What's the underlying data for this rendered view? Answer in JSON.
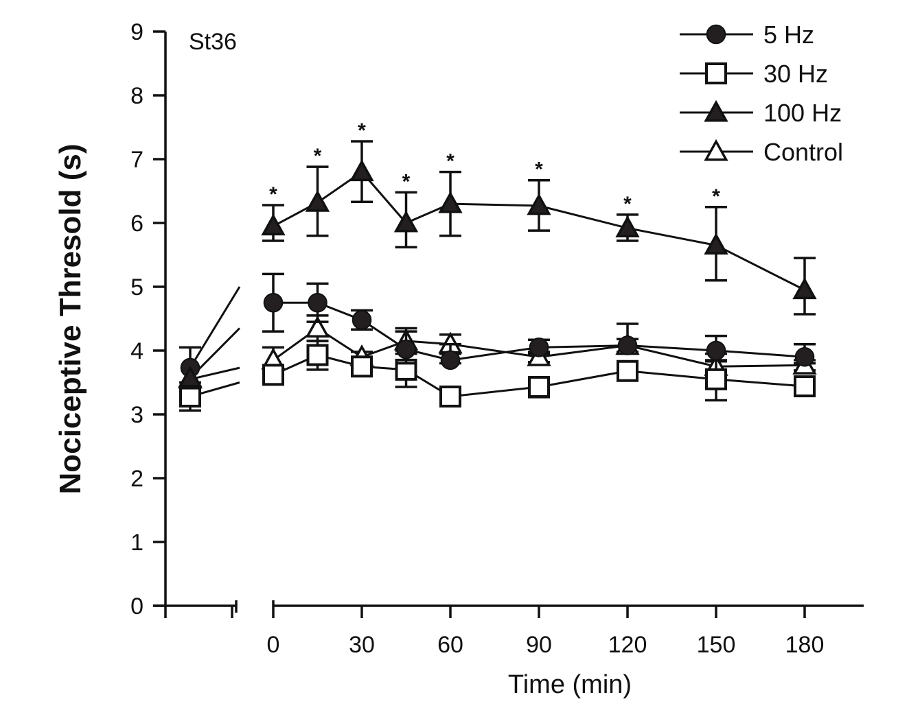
{
  "chart_data": {
    "type": "line",
    "title": "",
    "panel_label": "St36",
    "xlabel": "Time (min)",
    "ylabel": "Nociceptive Thresold (s)",
    "ylim": [
      0,
      9
    ],
    "xlim": [
      0,
      195
    ],
    "y_ticks": [
      "0",
      "1",
      "2",
      "3",
      "4",
      "5",
      "6",
      "7",
      "8",
      "9"
    ],
    "x_ticks": [
      "0",
      "30",
      "60",
      "90",
      "120",
      "150",
      "180"
    ],
    "x_tick_values": [
      0,
      30,
      60,
      90,
      120,
      150,
      180
    ],
    "baseline": {
      "label": "",
      "note": "pre-stimulation baseline shown on separate broken axis segment"
    },
    "x": [
      0,
      15,
      30,
      45,
      60,
      90,
      120,
      150,
      180
    ],
    "grid": false,
    "legend_position": "top-right",
    "series": [
      {
        "name": "5 Hz",
        "marker": "filled-circle",
        "baseline": 3.73,
        "baseline_err": 0.32,
        "values": [
          4.75,
          4.75,
          4.48,
          4.02,
          3.85,
          4.05,
          4.08,
          4.0,
          3.9
        ],
        "err_up": [
          0.45,
          0.3,
          0.15,
          0.28,
          0.25,
          0.12,
          0.34,
          0.23,
          0.2
        ],
        "err_down": [
          0.45,
          0.3,
          0.15,
          0.22,
          0.05,
          0.1,
          0.13,
          0.15,
          0.1
        ],
        "significant": [
          false,
          false,
          false,
          false,
          false,
          false,
          false,
          false,
          false
        ]
      },
      {
        "name": "30 Hz",
        "marker": "open-square",
        "baseline": 3.28,
        "baseline_err": 0.22,
        "values": [
          3.62,
          3.93,
          3.75,
          3.7,
          3.28,
          3.43,
          3.68,
          3.55,
          3.44
        ],
        "err_up": [
          0.1,
          0.22,
          0.1,
          0.3,
          0.08,
          0.12,
          0.1,
          0.4,
          0.1
        ],
        "err_down": [
          0.1,
          0.23,
          0.1,
          0.27,
          0.08,
          0.16,
          0.1,
          0.33,
          0.1
        ],
        "significant": [
          false,
          false,
          false,
          false,
          false,
          false,
          false,
          false,
          false
        ]
      },
      {
        "name": "100 Hz",
        "marker": "filled-triangle",
        "baseline": 3.57,
        "baseline_err": 0.0,
        "values": [
          5.95,
          6.32,
          6.8,
          6.0,
          6.3,
          6.27,
          5.92,
          5.65,
          4.95
        ],
        "err_up": [
          0.33,
          0.56,
          0.48,
          0.48,
          0.5,
          0.4,
          0.21,
          0.6,
          0.5
        ],
        "err_down": [
          0.23,
          0.52,
          0.47,
          0.38,
          0.5,
          0.39,
          0.2,
          0.55,
          0.38
        ],
        "significant": [
          true,
          true,
          true,
          true,
          true,
          true,
          true,
          true,
          false
        ]
      },
      {
        "name": "Control",
        "marker": "open-triangle",
        "baseline": 3.55,
        "baseline_err": 0.0,
        "values": [
          3.85,
          4.35,
          3.9,
          4.15,
          4.1,
          3.9,
          4.08,
          3.75,
          3.77
        ],
        "err_up": [
          0.2,
          0.2,
          0.08,
          0.2,
          0.15,
          0.08,
          0.1,
          0.08,
          0.08
        ],
        "err_down": [
          0.2,
          0.2,
          0.08,
          0.2,
          0.15,
          0.08,
          0.1,
          0.08,
          0.08
        ],
        "significant": [
          false,
          false,
          false,
          false,
          false,
          false,
          false,
          false,
          false
        ]
      }
    ],
    "annotations": [
      "*"
    ]
  },
  "legend": {
    "items": [
      {
        "label": "5 Hz",
        "marker": "filled-circle"
      },
      {
        "label": "30 Hz",
        "marker": "open-square"
      },
      {
        "label": "100 Hz",
        "marker": "filled-triangle"
      },
      {
        "label": "Control",
        "marker": "open-triangle"
      }
    ]
  },
  "colors": {
    "ink": "#111111",
    "marker_fill": "#231f20",
    "background": "#ffffff"
  }
}
